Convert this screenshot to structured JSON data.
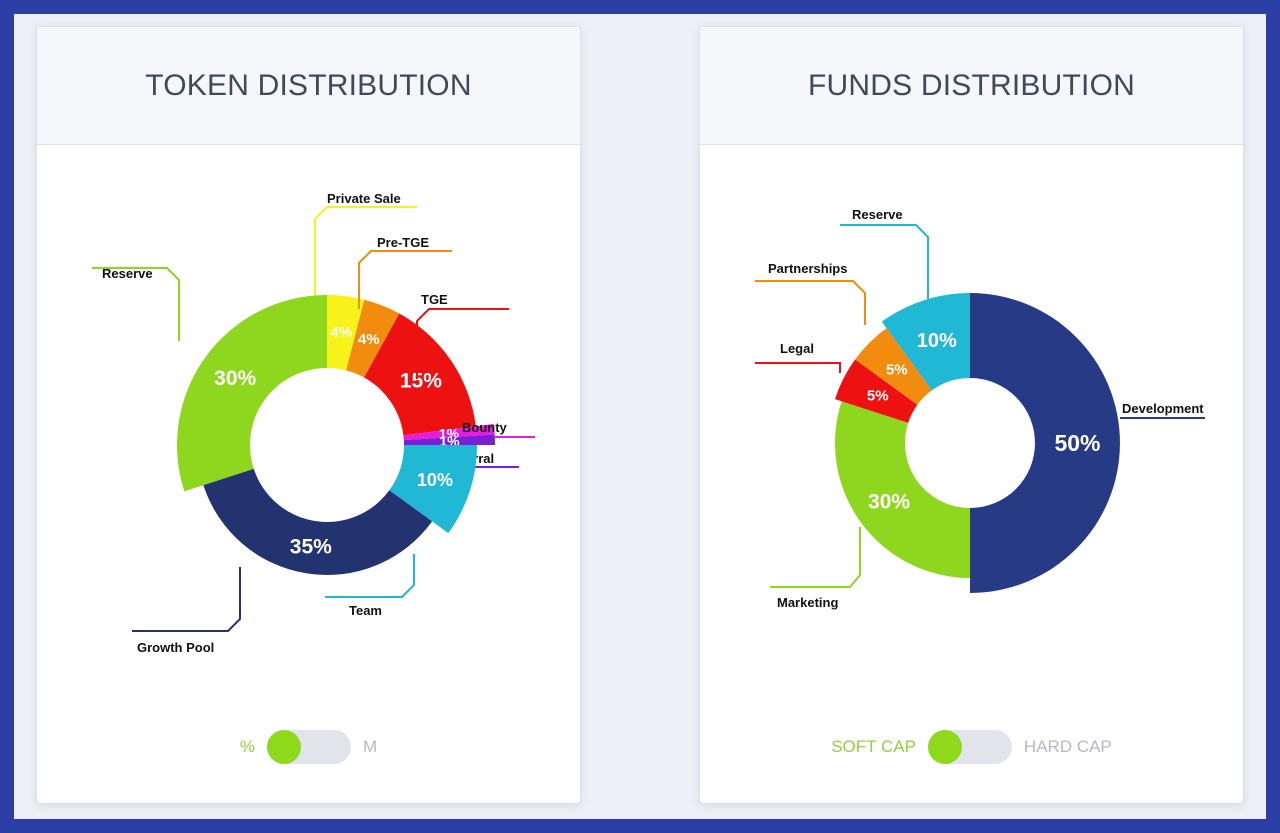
{
  "token": {
    "title": "TOKEN DISTRIBUTION",
    "toggle": {
      "left_label": "%",
      "right_label": "M",
      "selected": "%"
    }
  },
  "funds": {
    "title": "FUNDS DISTRIBUTION",
    "toggle": {
      "left_label": "SOFT CAP",
      "right_label": "HARD CAP",
      "selected": "SOFT CAP"
    }
  },
  "chart_data": [
    {
      "type": "pie",
      "title": "TOKEN DISTRIBUTION",
      "slices": [
        {
          "name": "Private Sale",
          "value": 4,
          "label": "4%",
          "color": "#f7f31a"
        },
        {
          "name": "Pre-TGE",
          "value": 4,
          "label": "4%",
          "color": "#f28c0f"
        },
        {
          "name": "TGE",
          "value": 15,
          "label": "15%",
          "color": "#ee1111"
        },
        {
          "name": "Bounty",
          "value": 1,
          "label": "1%",
          "color": "#e81cdc"
        },
        {
          "name": "Referral",
          "value": 1,
          "label": "1%",
          "color": "#7b1fd6"
        },
        {
          "name": "Team",
          "value": 10,
          "label": "10%",
          "color": "#20b8d4"
        },
        {
          "name": "Growth Pool",
          "value": 35,
          "label": "35%",
          "color": "#23336f"
        },
        {
          "name": "Reserve",
          "value": 30,
          "label": "30%",
          "color": "#8fd61f"
        }
      ]
    },
    {
      "type": "pie",
      "title": "FUNDS DISTRIBUTION",
      "slices": [
        {
          "name": "Development",
          "value": 50,
          "label": "50%",
          "color": "#263a86"
        },
        {
          "name": "Marketing",
          "value": 30,
          "label": "30%",
          "color": "#8fd61f"
        },
        {
          "name": "Legal",
          "value": 5,
          "label": "5%",
          "color": "#ee1111"
        },
        {
          "name": "Partnerships",
          "value": 5,
          "label": "5%",
          "color": "#f28c0f"
        },
        {
          "name": "Reserve",
          "value": 10,
          "label": "10%",
          "color": "#20b8d4"
        }
      ]
    }
  ]
}
